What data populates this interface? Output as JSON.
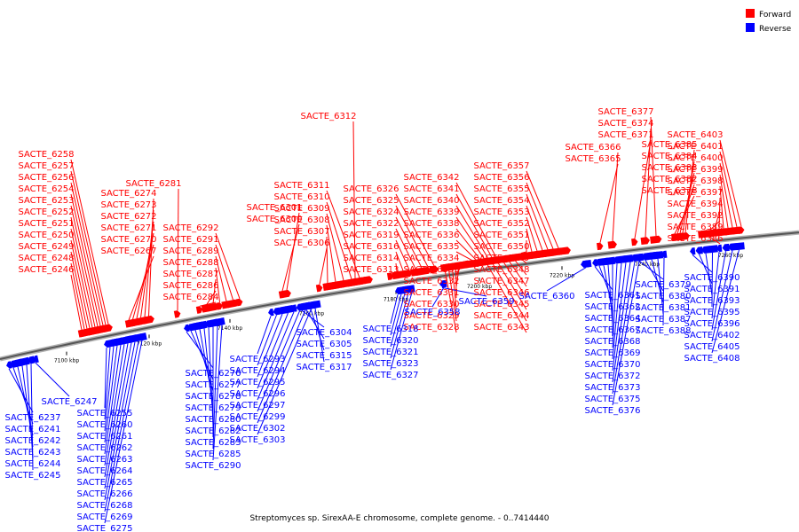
{
  "caption": "Streptomyces sp. SirexAA-E chromosome, complete genome. - 0..7414440",
  "legend": {
    "forward_label": "Forward",
    "reverse_label": "Reverse",
    "forward_color": "#ff0000",
    "reverse_color": "#0000ff"
  },
  "ticks": [
    "7100 kbp",
    "7120 kbp",
    "7140 kbp",
    "7160 kbp",
    "7180 kbp",
    "7200 kbp",
    "7220 kbp",
    "7240 kbp",
    "7260 kbp"
  ],
  "forward_genes": [
    "SACTE_6246",
    "SACTE_6248",
    "SACTE_6249",
    "SACTE_6250",
    "SACTE_6251",
    "SACTE_6252",
    "SACTE_6253",
    "SACTE_6254",
    "SACTE_6256",
    "SACTE_6257",
    "SACTE_6258",
    "SACTE_6267",
    "SACTE_6270",
    "SACTE_6271",
    "SACTE_6272",
    "SACTE_6273",
    "SACTE_6274",
    "SACTE_6281",
    "SACTE_6284",
    "SACTE_6286",
    "SACTE_6287",
    "SACTE_6288",
    "SACTE_6289",
    "SACTE_6291",
    "SACTE_6292",
    "SACTE_6300",
    "SACTE_6301",
    "SACTE_6306",
    "SACTE_6307",
    "SACTE_6308",
    "SACTE_6309",
    "SACTE_6310",
    "SACTE_6311",
    "SACTE_6312",
    "SACTE_6313",
    "SACTE_6314",
    "SACTE_6316",
    "SACTE_6319",
    "SACTE_6322",
    "SACTE_6324",
    "SACTE_6325",
    "SACTE_6326",
    "SACTE_6328",
    "SACTE_6329",
    "SACTE_6330",
    "SACTE_6331",
    "SACTE_6332",
    "SACTE_6333",
    "SACTE_6334",
    "SACTE_6335",
    "SACTE_6336",
    "SACTE_6338",
    "SACTE_6339",
    "SACTE_6340",
    "SACTE_6341",
    "SACTE_6342",
    "SACTE_6343",
    "SACTE_6344",
    "SACTE_6345",
    "SACTE_6346",
    "SACTE_6347",
    "SACTE_6348",
    "SACTE_6349",
    "SACTE_6350",
    "SACTE_6351",
    "SACTE_6352",
    "SACTE_6353",
    "SACTE_6354",
    "SACTE_6355",
    "SACTE_6356",
    "SACTE_6357",
    "SACTE_6365",
    "SACTE_6366",
    "SACTE_6371",
    "SACTE_6374",
    "SACTE_6377",
    "SACTE_6378",
    "SACTE_6382",
    "SACTE_6383",
    "SACTE_6384",
    "SACTE_6385",
    "SACTE_6386",
    "SACTE_6389",
    "SACTE_6392",
    "SACTE_6394",
    "SACTE_6397",
    "SACTE_6398",
    "SACTE_6399",
    "SACTE_6400",
    "SACTE_6401",
    "SACTE_6403"
  ],
  "reverse_genes": [
    "SACTE_6237",
    "SACTE_6241",
    "SACTE_6242",
    "SACTE_6243",
    "SACTE_6244",
    "SACTE_6245",
    "SACTE_6247",
    "SACTE_6255",
    "SACTE_6260",
    "SACTE_6261",
    "SACTE_6262",
    "SACTE_6263",
    "SACTE_6264",
    "SACTE_6265",
    "SACTE_6266",
    "SACTE_6268",
    "SACTE_6269",
    "SACTE_6275",
    "SACTE_6276",
    "SACTE_6277",
    "SACTE_6278",
    "SACTE_6279",
    "SACTE_6280",
    "SACTE_6282",
    "SACTE_6283",
    "SACTE_6285",
    "SACTE_6290",
    "SACTE_6293",
    "SACTE_6294",
    "SACTE_6295",
    "SACTE_6296",
    "SACTE_6297",
    "SACTE_6299",
    "SACTE_6302",
    "SACTE_6303",
    "SACTE_6304",
    "SACTE_6305",
    "SACTE_6315",
    "SACTE_6317",
    "SACTE_6318",
    "SACTE_6320",
    "SACTE_6321",
    "SACTE_6323",
    "SACTE_6327",
    "SACTE_6358",
    "SACTE_6359",
    "SACTE_6360",
    "SACTE_6361",
    "SACTE_6362",
    "SACTE_6364",
    "SACTE_6367",
    "SACTE_6368",
    "SACTE_6369",
    "SACTE_6370",
    "SACTE_6372",
    "SACTE_6373",
    "SACTE_6375",
    "SACTE_6376",
    "SACTE_6379",
    "SACTE_6380",
    "SACTE_6381",
    "SACTE_6387",
    "SACTE_6388",
    "SACTE_6390",
    "SACTE_6391",
    "SACTE_6393",
    "SACTE_6395",
    "SACTE_6396",
    "SACTE_6402",
    "SACTE_6405",
    "SACTE_6408"
  ]
}
